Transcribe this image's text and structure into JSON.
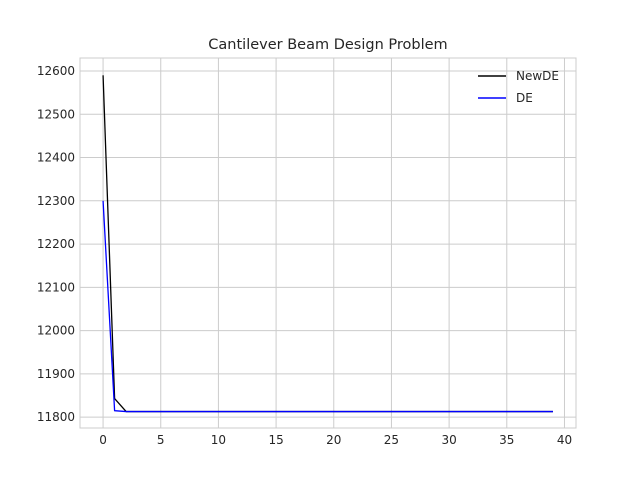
{
  "chart_data": {
    "type": "line",
    "title": "Cantilever Beam Design Problem",
    "xlabel": "",
    "ylabel": "",
    "xlim": [
      -2,
      41
    ],
    "ylim": [
      11775,
      12630
    ],
    "xticks": [
      0,
      5,
      10,
      15,
      20,
      25,
      30,
      35,
      40
    ],
    "yticks": [
      11800,
      11900,
      12000,
      12100,
      12200,
      12300,
      12400,
      12500,
      12600
    ],
    "grid": true,
    "legend_position": "top-right",
    "x": [
      0,
      1,
      2,
      3,
      4,
      5,
      6,
      7,
      8,
      9,
      10,
      11,
      12,
      13,
      14,
      15,
      16,
      17,
      18,
      19,
      20,
      21,
      22,
      23,
      24,
      25,
      26,
      27,
      28,
      29,
      30,
      31,
      32,
      33,
      34,
      35,
      36,
      37,
      38,
      39
    ],
    "series": [
      {
        "name": "NewDE",
        "color": "#000000",
        "values": [
          12590,
          11843,
          11813,
          11813,
          11813,
          11813,
          11813,
          11813,
          11813,
          11813,
          11813,
          11813,
          11813,
          11813,
          11813,
          11813,
          11813,
          11813,
          11813,
          11813,
          11813,
          11813,
          11813,
          11813,
          11813,
          11813,
          11813,
          11813,
          11813,
          11813,
          11813,
          11813,
          11813,
          11813,
          11813,
          11813,
          11813,
          11813,
          11813,
          11813
        ]
      },
      {
        "name": "DE",
        "color": "#0000ff",
        "values": [
          12300,
          11815,
          11813,
          11813,
          11813,
          11813,
          11813,
          11813,
          11813,
          11813,
          11813,
          11813,
          11813,
          11813,
          11813,
          11813,
          11813,
          11813,
          11813,
          11813,
          11813,
          11813,
          11813,
          11813,
          11813,
          11813,
          11813,
          11813,
          11813,
          11813,
          11813,
          11813,
          11813,
          11813,
          11813,
          11813,
          11813,
          11813,
          11813,
          11813
        ]
      }
    ]
  }
}
